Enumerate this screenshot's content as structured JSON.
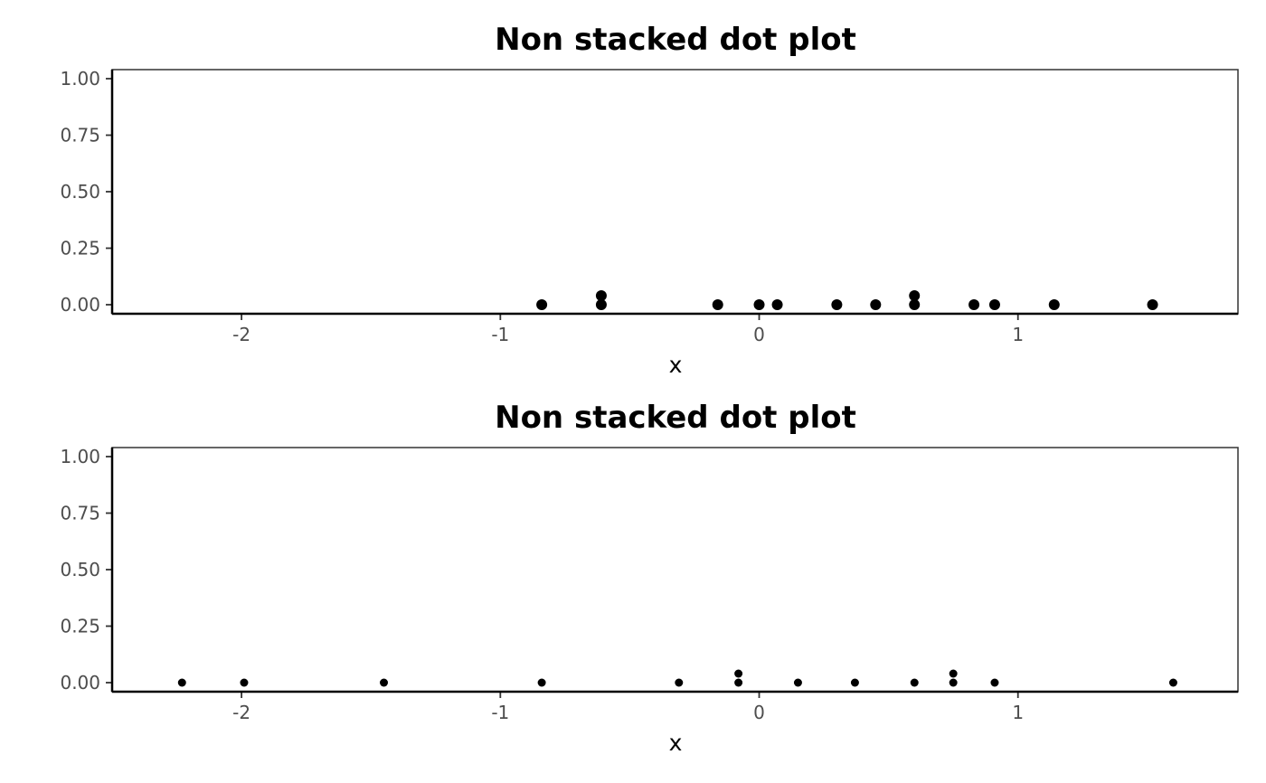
{
  "chart_data": [
    {
      "type": "scatter",
      "title": "Non stacked dot plot",
      "xlabel": "x",
      "ylabel": "",
      "xlim": [
        -2.5,
        1.85
      ],
      "ylim": [
        -0.04,
        1.04
      ],
      "xticks": [
        -2,
        -1,
        0,
        1
      ],
      "xtick_labels": [
        "-2",
        "-1",
        "0",
        "1"
      ],
      "yticks": [
        0,
        0.25,
        0.5,
        0.75,
        1
      ],
      "ytick_labels": [
        "0.00",
        "0.25",
        "0.50",
        "0.75",
        "1.00"
      ],
      "grid": false,
      "point_color": "#000000",
      "points": [
        {
          "x": -0.84,
          "y": 0
        },
        {
          "x": -0.61,
          "y": 0
        },
        {
          "x": -0.61,
          "y": 0.04
        },
        {
          "x": -0.16,
          "y": 0
        },
        {
          "x": 0.0,
          "y": 0
        },
        {
          "x": 0.07,
          "y": 0
        },
        {
          "x": 0.3,
          "y": 0
        },
        {
          "x": 0.45,
          "y": 0
        },
        {
          "x": 0.6,
          "y": 0
        },
        {
          "x": 0.6,
          "y": 0.04
        },
        {
          "x": 0.83,
          "y": 0
        },
        {
          "x": 0.91,
          "y": 0
        },
        {
          "x": 1.14,
          "y": 0
        },
        {
          "x": 1.52,
          "y": 0
        }
      ]
    },
    {
      "type": "scatter",
      "title": "Non stacked dot plot",
      "xlabel": "x",
      "ylabel": "",
      "xlim": [
        -2.5,
        1.85
      ],
      "ylim": [
        -0.04,
        1.04
      ],
      "xticks": [
        -2,
        -1,
        0,
        1
      ],
      "xtick_labels": [
        "-2",
        "-1",
        "0",
        "1"
      ],
      "yticks": [
        0,
        0.25,
        0.5,
        0.75,
        1
      ],
      "ytick_labels": [
        "0.00",
        "0.25",
        "0.50",
        "0.75",
        "1.00"
      ],
      "grid": false,
      "point_color": "#000000",
      "points": [
        {
          "x": -2.23,
          "y": 0
        },
        {
          "x": -1.99,
          "y": 0
        },
        {
          "x": -1.45,
          "y": 0
        },
        {
          "x": -0.84,
          "y": 0
        },
        {
          "x": -0.31,
          "y": 0
        },
        {
          "x": -0.08,
          "y": 0
        },
        {
          "x": -0.08,
          "y": 0.04
        },
        {
          "x": 0.15,
          "y": 0
        },
        {
          "x": 0.37,
          "y": 0
        },
        {
          "x": 0.6,
          "y": 0
        },
        {
          "x": 0.75,
          "y": 0
        },
        {
          "x": 0.75,
          "y": 0.04
        },
        {
          "x": 0.91,
          "y": 0
        },
        {
          "x": 1.6,
          "y": 0
        }
      ]
    }
  ]
}
